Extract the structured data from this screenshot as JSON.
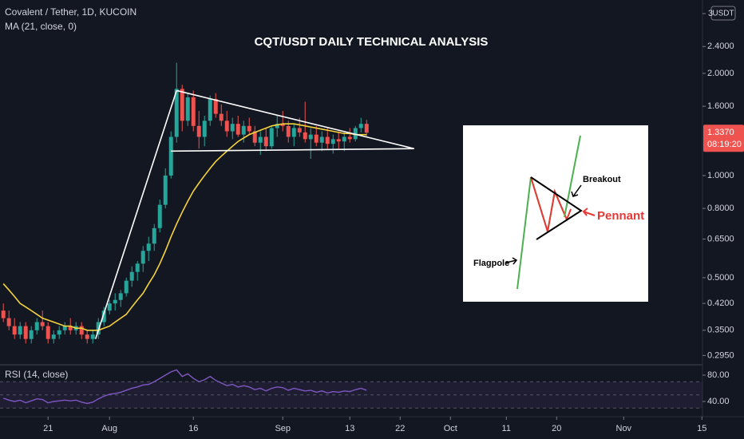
{
  "header": {
    "symbol": "Covalent / Tether, 1D, KUCOIN",
    "currency": "USDT"
  },
  "chart_data": [
    {
      "type": "candlestick",
      "title": "CQT/USDT DAILY TECHNICAL ANALYSIS",
      "x": [
        0,
        1,
        2,
        3,
        4,
        5,
        6,
        7,
        8,
        9,
        10,
        11,
        12,
        13,
        14,
        15,
        16,
        17,
        18,
        19,
        20,
        21,
        22,
        23,
        24,
        25,
        26,
        27,
        28,
        29,
        30,
        31,
        32,
        33,
        34,
        35,
        36,
        37,
        38,
        39,
        40,
        41,
        42,
        43,
        44,
        45,
        46,
        47,
        48,
        49,
        50,
        51,
        52,
        53,
        54,
        55,
        56,
        57,
        58,
        59,
        60,
        61,
        62,
        63,
        64,
        65
      ],
      "xlim": [
        -0.6,
        125.1
      ],
      "xticks": [
        {
          "value": 8,
          "label": "21"
        },
        {
          "value": 19,
          "label": "Aug"
        },
        {
          "value": 34,
          "label": "16"
        },
        {
          "value": 50,
          "label": "Sep"
        },
        {
          "value": 62,
          "label": "13"
        },
        {
          "value": 71,
          "label": "22"
        },
        {
          "value": 80,
          "label": "Oct"
        },
        {
          "value": 90,
          "label": "11"
        },
        {
          "value": 99,
          "label": "20"
        },
        {
          "value": 111,
          "label": "Nov"
        },
        {
          "value": 125,
          "label": "15"
        }
      ],
      "ylim": [
        0.28,
        3.29
      ],
      "log_scale": true,
      "grid": false,
      "yticks": [
        3,
        {
          "value": 2.4,
          "label": "2.4000"
        },
        {
          "value": 2.0,
          "label": "2.0000"
        },
        {
          "value": 1.6,
          "label": "1.6000"
        },
        {
          "value": 1.0,
          "label": "1.0000"
        },
        {
          "value": 0.8,
          "label": "0.8000"
        },
        {
          "value": 0.65,
          "label": "0.6500"
        },
        {
          "value": 0.5,
          "label": "0.5000"
        },
        {
          "value": 0.42,
          "label": "0.4200"
        },
        {
          "value": 0.35,
          "label": "0.3500"
        },
        {
          "value": 0.295,
          "label": "0.2950"
        }
      ],
      "series": [
        {
          "up_color": "#26a69a",
          "down_color": "#ef5350",
          "open": [
            0.4,
            0.38,
            0.36,
            0.34,
            0.36,
            0.33,
            0.35,
            0.37,
            0.36,
            0.33,
            0.34,
            0.35,
            0.36,
            0.35,
            0.36,
            0.34,
            0.33,
            0.34,
            0.37,
            0.4,
            0.42,
            0.43,
            0.45,
            0.49,
            0.52,
            0.55,
            0.6,
            0.63,
            0.7,
            0.82,
            1.0,
            1.3,
            1.8,
            1.45,
            1.7,
            1.4,
            1.3,
            1.45,
            1.68,
            1.52,
            1.45,
            1.35,
            1.42,
            1.32,
            1.4,
            1.35,
            1.25,
            1.3,
            1.22,
            1.38,
            1.42,
            1.4,
            1.3,
            1.38,
            1.34,
            1.28,
            1.32,
            1.25,
            1.3,
            1.24,
            1.28,
            1.26,
            1.3,
            1.28,
            1.38,
            1.42
          ],
          "high": [
            0.42,
            0.4,
            0.38,
            0.37,
            0.37,
            0.36,
            0.38,
            0.4,
            0.37,
            0.35,
            0.36,
            0.37,
            0.38,
            0.37,
            0.37,
            0.35,
            0.35,
            0.38,
            0.41,
            0.43,
            0.45,
            0.46,
            0.5,
            0.54,
            0.56,
            0.62,
            0.66,
            0.72,
            0.85,
            1.05,
            1.35,
            2.15,
            1.85,
            1.75,
            1.78,
            1.55,
            1.5,
            1.72,
            1.75,
            1.62,
            1.55,
            1.48,
            1.5,
            1.45,
            1.48,
            1.4,
            1.35,
            1.38,
            1.4,
            1.5,
            1.55,
            1.45,
            1.42,
            1.48,
            1.65,
            1.38,
            1.4,
            1.35,
            1.38,
            1.32,
            1.35,
            1.34,
            1.38,
            1.4,
            1.48,
            1.46
          ],
          "low": [
            0.37,
            0.35,
            0.33,
            0.33,
            0.32,
            0.32,
            0.34,
            0.35,
            0.32,
            0.32,
            0.33,
            0.34,
            0.34,
            0.34,
            0.33,
            0.32,
            0.32,
            0.33,
            0.36,
            0.39,
            0.4,
            0.41,
            0.44,
            0.47,
            0.49,
            0.52,
            0.56,
            0.6,
            0.68,
            0.8,
            0.98,
            1.25,
            1.35,
            1.4,
            1.35,
            1.2,
            1.22,
            1.4,
            1.48,
            1.4,
            1.3,
            1.28,
            1.3,
            1.25,
            1.32,
            1.22,
            1.15,
            1.18,
            1.2,
            1.3,
            1.35,
            1.25,
            1.22,
            1.3,
            1.25,
            1.12,
            1.22,
            1.18,
            1.2,
            1.16,
            1.2,
            1.18,
            1.25,
            1.26,
            1.34,
            1.3
          ],
          "close": [
            0.38,
            0.36,
            0.34,
            0.36,
            0.33,
            0.35,
            0.37,
            0.36,
            0.33,
            0.34,
            0.35,
            0.36,
            0.35,
            0.36,
            0.34,
            0.33,
            0.34,
            0.37,
            0.4,
            0.42,
            0.43,
            0.45,
            0.49,
            0.52,
            0.55,
            0.6,
            0.63,
            0.7,
            0.82,
            1.0,
            1.3,
            1.8,
            1.45,
            1.7,
            1.4,
            1.3,
            1.45,
            1.68,
            1.52,
            1.45,
            1.35,
            1.42,
            1.32,
            1.4,
            1.35,
            1.25,
            1.3,
            1.22,
            1.38,
            1.42,
            1.4,
            1.3,
            1.38,
            1.34,
            1.28,
            1.32,
            1.25,
            1.3,
            1.24,
            1.28,
            1.26,
            1.3,
            1.28,
            1.38,
            1.42,
            1.337
          ]
        },
        {
          "name": "MA (21, close, 0)",
          "color": "#f5d33b",
          "values": [
            0.48,
            0.46,
            0.44,
            0.42,
            0.41,
            0.4,
            0.39,
            0.38,
            0.375,
            0.37,
            0.365,
            0.36,
            0.36,
            0.355,
            0.355,
            0.35,
            0.35,
            0.35,
            0.355,
            0.36,
            0.37,
            0.38,
            0.39,
            0.41,
            0.43,
            0.45,
            0.48,
            0.51,
            0.55,
            0.6,
            0.66,
            0.72,
            0.78,
            0.84,
            0.9,
            0.95,
            1.0,
            1.05,
            1.1,
            1.14,
            1.18,
            1.22,
            1.26,
            1.29,
            1.32,
            1.34,
            1.36,
            1.38,
            1.4,
            1.41,
            1.42,
            1.42,
            1.42,
            1.41,
            1.4,
            1.39,
            1.38,
            1.37,
            1.36,
            1.35,
            1.34,
            1.33,
            1.33,
            1.32,
            1.32,
            1.32
          ]
        }
      ],
      "last_price": {
        "value": 1.337,
        "label": "1.3370",
        "color": "#ef5350"
      },
      "countdown": "08:19:20",
      "drawings": [
        {
          "color": "#ffffff",
          "x": [
            16.5,
            31
          ],
          "y": [
            0.33,
            1.78
          ]
        },
        {
          "color": "#ffffff",
          "x": [
            31,
            73.5
          ],
          "y": [
            1.78,
            1.2
          ]
        },
        {
          "color": "#ffffff",
          "x": [
            30,
            73.5
          ],
          "y": [
            1.18,
            1.2
          ]
        }
      ],
      "annotations": [
        "Breakout",
        "Pennant",
        "Flagpole"
      ]
    },
    {
      "type": "line",
      "name": "RSI (14, close)",
      "color": "#7e57c2",
      "values": [
        45,
        42,
        40,
        42,
        38,
        41,
        44,
        43,
        38,
        40,
        41,
        42,
        41,
        42,
        39,
        37,
        39,
        44,
        48,
        51,
        52,
        54,
        57,
        60,
        62,
        65,
        66,
        70,
        75,
        80,
        85,
        88,
        78,
        82,
        75,
        70,
        73,
        78,
        72,
        68,
        64,
        66,
        62,
        64,
        62,
        58,
        60,
        56,
        60,
        62,
        61,
        57,
        60,
        58,
        56,
        57,
        54,
        56,
        53,
        55,
        54,
        56,
        55,
        58,
        60,
        57
      ],
      "ylim": [
        19.4,
        94.5
      ],
      "yticks": [
        {
          "value": 80,
          "label": "80.00"
        },
        {
          "value": 40,
          "label": "40.00"
        }
      ],
      "levels": [
        70,
        50,
        30
      ]
    }
  ]
}
